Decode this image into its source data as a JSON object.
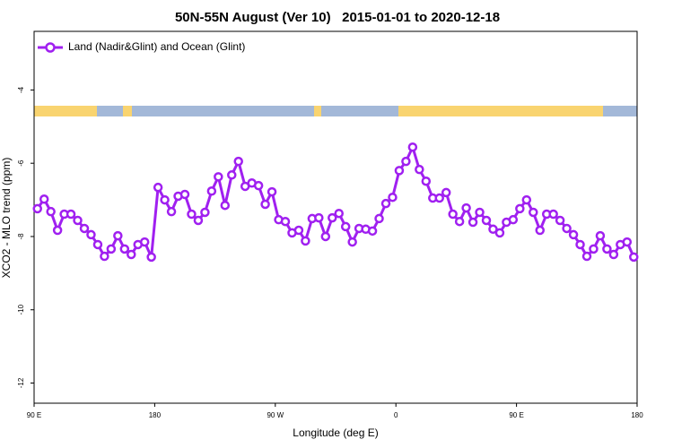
{
  "chart_data": {
    "type": "line",
    "title": "50N-55N August (Ver 10)   2015-01-01 to 2020-12-18",
    "x_label": "Longitude (deg E)",
    "y_label": "XCO2 - MLO trend (ppm)",
    "x": [
      92.5,
      97.5,
      102.5,
      107.5,
      112.5,
      117.5,
      122.5,
      127.5,
      132.5,
      137.5,
      142.5,
      147.5,
      152.5,
      157.5,
      162.5,
      167.5,
      172.5,
      177.5,
      182.5,
      187.5,
      192.5,
      197.5,
      202.5,
      207.5,
      212.5,
      217.5,
      222.5,
      227.5,
      232.5,
      237.5,
      242.5,
      247.5,
      252.5,
      257.5,
      262.5,
      267.5,
      272.5,
      277.5,
      282.5,
      287.5,
      292.5,
      297.5,
      302.5,
      307.5,
      312.5,
      317.5,
      322.5,
      327.5,
      332.5,
      337.5,
      342.5,
      347.5,
      352.5,
      357.5,
      362.5,
      367.5,
      372.5,
      377.5,
      382.5,
      387.5,
      392.5,
      397.5,
      402.5,
      407.5,
      412.5,
      417.5,
      422.5,
      427.5,
      432.5,
      437.5,
      442.5,
      447.5,
      452.5,
      457.5,
      462.5,
      467.5,
      472.5,
      477.5,
      482.5,
      487.5,
      492.5,
      497.5,
      502.5,
      507.5,
      512.5,
      517.5,
      522.5,
      527.5,
      532.5,
      537.5
    ],
    "series": [
      {
        "name": "Land (Nadir&Glint) and Ocean (Glint)",
        "color": "#a020f0",
        "values": [
          -7.24,
          -6.98,
          -7.32,
          -7.83,
          -7.39,
          -7.39,
          -7.56,
          -7.78,
          -7.95,
          -8.22,
          -8.54,
          -8.34,
          -7.98,
          -8.34,
          -8.49,
          -8.22,
          -8.15,
          -8.56,
          -6.66,
          -7.0,
          -7.32,
          -6.9,
          -6.85,
          -7.39,
          -7.56,
          -7.34,
          -6.76,
          -6.37,
          -7.15,
          -6.32,
          -5.95,
          -6.63,
          -6.54,
          -6.61,
          -7.12,
          -6.78,
          -7.54,
          -7.59,
          -7.9,
          -7.83,
          -8.12,
          -7.51,
          -7.49,
          -8.0,
          -7.49,
          -7.37,
          -7.73,
          -8.15,
          -7.78,
          -7.8,
          -7.85,
          -7.51,
          -7.1,
          -6.93,
          -6.2,
          -5.95,
          -5.56,
          -6.17,
          -6.49,
          -6.95,
          -6.95,
          -6.8,
          -7.39,
          -7.59,
          -7.22,
          -7.61,
          -7.34,
          -7.56,
          -7.8,
          -7.9,
          -7.61,
          -7.54,
          -7.24,
          -7.0,
          -7.34,
          -7.83,
          -7.39,
          -7.39,
          -7.56,
          -7.78,
          -7.95,
          -8.22,
          -8.54,
          -8.34,
          -7.98,
          -8.34,
          -8.49,
          -8.22,
          -8.15,
          -8.56
        ]
      }
    ],
    "xlim": [
      90,
      540
    ],
    "xticks": [
      {
        "value": 90,
        "label": "90 E"
      },
      180,
      {
        "value": 270,
        "label": "90 W"
      },
      {
        "value": 360,
        "label": "0"
      },
      {
        "value": 450,
        "label": "90 E"
      },
      {
        "value": 540,
        "label": "180"
      }
    ],
    "ylim": [
      -12.55,
      -2.4
    ],
    "yticks": [
      -4,
      -6,
      -8,
      -10,
      -12
    ],
    "legend": "upper left"
  }
}
